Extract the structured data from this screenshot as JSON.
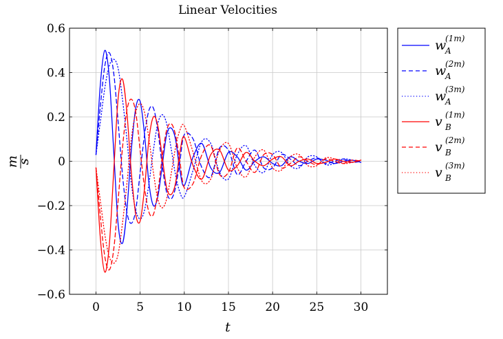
{
  "chart_data": {
    "type": "line",
    "title": "Linear Velocities",
    "xlabel": "t",
    "ylabel": {
      "numerator": "m",
      "denominator": "s"
    },
    "xlim": [
      -3,
      33
    ],
    "ylim": [
      -0.6,
      0.6
    ],
    "xticks": [
      0,
      5,
      10,
      15,
      20,
      25,
      30
    ],
    "yticks": [
      -0.6,
      -0.4,
      -0.2,
      0,
      0.2,
      0.4,
      0.6
    ],
    "xtick_labels": [
      "0",
      "5",
      "10",
      "15",
      "20",
      "25",
      "30"
    ],
    "ytick_labels": [
      "−0.6",
      "−0.4",
      "−0.2",
      "0",
      "0.2",
      "0.4",
      "0.6"
    ],
    "grid": true,
    "legend_position": "outside-right",
    "series": [
      {
        "name": "w_A^(1m)",
        "base": "w",
        "sup": "(1m)",
        "sub": "A",
        "color": "#0000ff",
        "dash": "solid",
        "x": [
          0,
          0.5,
          1,
          1.5,
          2,
          2.5,
          3,
          3.5,
          4,
          4.5,
          5,
          5.5,
          6,
          6.5,
          7,
          7.5,
          8,
          8.5,
          9,
          9.5,
          10,
          11,
          12,
          13,
          14,
          15,
          16,
          17,
          18,
          19,
          20,
          21,
          22,
          23,
          24,
          25,
          26,
          27,
          28,
          29,
          30
        ],
        "y": [
          0.03,
          0.35,
          0.5,
          0.38,
          0.05,
          -0.28,
          -0.37,
          -0.22,
          0.05,
          0.24,
          0.27,
          0.12,
          -0.1,
          -0.2,
          -0.16,
          -0.02,
          0.12,
          0.15,
          0.1,
          -0.04,
          -0.11,
          0.02,
          0.08,
          -0.03,
          -0.05,
          0.04,
          0.02,
          -0.04,
          0.0,
          0.02,
          -0.01,
          -0.02,
          0.02,
          0.0,
          -0.01,
          0.01,
          0.005,
          -0.01,
          0.0,
          0.005,
          -0.005
        ]
      },
      {
        "name": "w_A^(2m)",
        "base": "w",
        "sup": "(2m)",
        "sub": "A",
        "color": "#0000ff",
        "dash": "dashed",
        "x": [
          0,
          0.5,
          1,
          1.5,
          2,
          2.5,
          3,
          3.5,
          4,
          4.5,
          5,
          5.5,
          6,
          6.5,
          7,
          7.5,
          8,
          8.5,
          9,
          9.5,
          10,
          11,
          12,
          13,
          14,
          15,
          16,
          17,
          18,
          19,
          20,
          21,
          22,
          23,
          24,
          25,
          26,
          27,
          28,
          29,
          30
        ],
        "y": [
          0.03,
          0.25,
          0.43,
          0.49,
          0.4,
          0.18,
          -0.06,
          -0.23,
          -0.28,
          -0.22,
          -0.05,
          0.12,
          0.23,
          0.24,
          0.14,
          -0.02,
          -0.14,
          -0.17,
          -0.12,
          0.0,
          0.12,
          0.1,
          -0.03,
          -0.07,
          0.06,
          0.05,
          -0.06,
          0.0,
          0.05,
          -0.03,
          -0.03,
          0.03,
          0.01,
          -0.02,
          0.0,
          0.015,
          -0.01,
          0.0,
          0.01,
          -0.005,
          0.0
        ]
      },
      {
        "name": "w_A^(3m)",
        "base": "w",
        "sup": "(3m)",
        "sub": "A",
        "color": "#0000ff",
        "dash": "dotted",
        "x": [
          0,
          0.5,
          1,
          1.5,
          2,
          2.5,
          3,
          3.5,
          4,
          4.5,
          5,
          5.5,
          6,
          6.5,
          7,
          7.5,
          8,
          8.5,
          9,
          9.5,
          10,
          11,
          12,
          13,
          14,
          15,
          16,
          17,
          18,
          19,
          20,
          21,
          22,
          23,
          24,
          25,
          26,
          27,
          28,
          29,
          30
        ],
        "y": [
          0.03,
          0.18,
          0.33,
          0.43,
          0.46,
          0.42,
          0.28,
          0.1,
          -0.1,
          -0.22,
          -0.26,
          -0.22,
          -0.1,
          0.05,
          0.17,
          0.21,
          0.17,
          0.06,
          -0.06,
          -0.14,
          -0.16,
          -0.04,
          0.09,
          0.08,
          -0.05,
          -0.08,
          0.03,
          0.07,
          -0.02,
          -0.05,
          0.03,
          0.04,
          -0.02,
          -0.03,
          0.02,
          0.02,
          -0.015,
          -0.01,
          0.01,
          0.005,
          -0.005
        ]
      },
      {
        "name": "v_B^(1m)",
        "base": "v",
        "sup": "(1m)",
        "sub": "B",
        "color": "#ff0000",
        "dash": "solid",
        "x": [
          0,
          0.5,
          1,
          1.5,
          2,
          2.5,
          3,
          3.5,
          4,
          4.5,
          5,
          5.5,
          6,
          6.5,
          7,
          7.5,
          8,
          8.5,
          9,
          9.5,
          10,
          11,
          12,
          13,
          14,
          15,
          16,
          17,
          18,
          19,
          20,
          21,
          22,
          23,
          24,
          25,
          26,
          27,
          28,
          29,
          30
        ],
        "y": [
          -0.03,
          -0.35,
          -0.5,
          -0.38,
          -0.05,
          0.28,
          0.37,
          0.22,
          -0.05,
          -0.24,
          -0.27,
          -0.12,
          0.1,
          0.2,
          0.16,
          0.02,
          -0.12,
          -0.15,
          -0.1,
          0.04,
          0.11,
          -0.02,
          -0.08,
          0.03,
          0.05,
          -0.04,
          -0.02,
          0.04,
          0.0,
          -0.02,
          0.01,
          0.02,
          -0.02,
          0.0,
          0.01,
          -0.01,
          -0.005,
          0.01,
          0.0,
          -0.005,
          0.005
        ]
      },
      {
        "name": "v_B^(2m)",
        "base": "v",
        "sup": "(2m)",
        "sub": "B",
        "color": "#ff0000",
        "dash": "dashed",
        "x": [
          0,
          0.5,
          1,
          1.5,
          2,
          2.5,
          3,
          3.5,
          4,
          4.5,
          5,
          5.5,
          6,
          6.5,
          7,
          7.5,
          8,
          8.5,
          9,
          9.5,
          10,
          11,
          12,
          13,
          14,
          15,
          16,
          17,
          18,
          19,
          20,
          21,
          22,
          23,
          24,
          25,
          26,
          27,
          28,
          29,
          30
        ],
        "y": [
          -0.03,
          -0.25,
          -0.43,
          -0.49,
          -0.4,
          -0.18,
          0.06,
          0.23,
          0.28,
          0.22,
          0.05,
          -0.12,
          -0.23,
          -0.24,
          -0.14,
          0.02,
          0.14,
          0.17,
          0.12,
          0.0,
          -0.12,
          -0.1,
          0.03,
          0.07,
          -0.06,
          -0.05,
          0.06,
          0.0,
          -0.05,
          0.03,
          0.03,
          -0.03,
          -0.01,
          0.02,
          0.0,
          -0.015,
          0.01,
          0.0,
          -0.01,
          0.005,
          0.0
        ]
      },
      {
        "name": "v_B^(3m)",
        "base": "v",
        "sup": "(3m)",
        "sub": "B",
        "color": "#ff0000",
        "dash": "dotted",
        "x": [
          0,
          0.5,
          1,
          1.5,
          2,
          2.5,
          3,
          3.5,
          4,
          4.5,
          5,
          5.5,
          6,
          6.5,
          7,
          7.5,
          8,
          8.5,
          9,
          9.5,
          10,
          11,
          12,
          13,
          14,
          15,
          16,
          17,
          18,
          19,
          20,
          21,
          22,
          23,
          24,
          25,
          26,
          27,
          28,
          29,
          30
        ],
        "y": [
          -0.03,
          -0.18,
          -0.33,
          -0.43,
          -0.46,
          -0.42,
          -0.28,
          -0.1,
          0.1,
          0.22,
          0.26,
          0.22,
          0.1,
          -0.05,
          -0.17,
          -0.21,
          -0.17,
          -0.06,
          0.06,
          0.14,
          0.16,
          0.04,
          -0.09,
          -0.08,
          0.05,
          0.08,
          -0.03,
          -0.07,
          0.02,
          0.05,
          -0.03,
          -0.04,
          0.02,
          0.03,
          -0.02,
          -0.02,
          0.015,
          0.01,
          -0.01,
          -0.005,
          0.005
        ]
      }
    ]
  }
}
